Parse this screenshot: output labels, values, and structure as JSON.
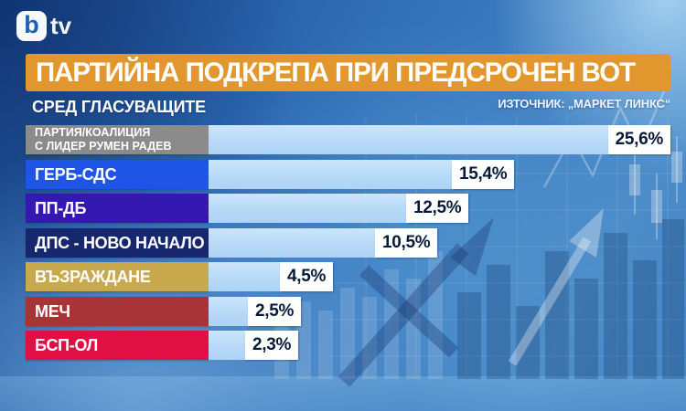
{
  "logo": {
    "b": "b",
    "tv": "tv"
  },
  "header": {
    "title": "ПАРТИЙНА ПОДКРЕПА ПРИ ПРЕДСРОЧЕН ВОТ",
    "subtitle": "СРЕД ГЛАСУВАЩИТЕ",
    "source": "ИЗТОЧНИК: „МАРКЕТ ЛИНКС“"
  },
  "colors": {
    "banner": "#E2962E",
    "bar_fill": "#BCDCF8",
    "value_box": "#FFFFFF",
    "value_text": "#071A38"
  },
  "rows": [
    {
      "label_line1": "ПАРТИЯ/КОАЛИЦИЯ",
      "label_line2": "С ЛИДЕР РУМЕН РАДЕВ",
      "value_label": "25,6%",
      "pct": 25.6,
      "color": "#8B8B8B"
    },
    {
      "label_line1": "ГЕРБ-СДС",
      "label_line2": "",
      "value_label": "15,4%",
      "pct": 15.4,
      "color": "#1F55E6"
    },
    {
      "label_line1": "ПП-ДБ",
      "label_line2": "",
      "value_label": "12,5%",
      "pct": 12.5,
      "color": "#3518B0"
    },
    {
      "label_line1": "ДПС - НОВО НАЧАЛО",
      "label_line2": "",
      "value_label": "10,5%",
      "pct": 10.5,
      "color": "#16276E"
    },
    {
      "label_line1": "ВЪЗРАЖДАНЕ",
      "label_line2": "",
      "value_label": "4,5%",
      "pct": 4.5,
      "color": "#C8A94E"
    },
    {
      "label_line1": "МЕЧ",
      "label_line2": "",
      "value_label": "2,5%",
      "pct": 2.5,
      "color": "#A93438"
    },
    {
      "label_line1": "БСП-ОЛ",
      "label_line2": "",
      "value_label": "2,3%",
      "pct": 2.3,
      "color": "#E00F44"
    }
  ],
  "chart_data": {
    "type": "bar",
    "orientation": "horizontal",
    "title": "ПАРТИЙНА ПОДКРЕПА ПРИ ПРЕДСРОЧЕН ВОТ",
    "subtitle": "СРЕД ГЛАСУВАЩИТЕ",
    "source": "ИЗТОЧНИК: „МАРКЕТ ЛИНКС“",
    "categories": [
      "ПАРТИЯ/КОАЛИЦИЯ С ЛИДЕР РУМЕН РАДЕВ",
      "ГЕРБ-СДС",
      "ПП-ДБ",
      "ДПС - НОВО НАЧАЛО",
      "ВЪЗРАЖДАНЕ",
      "МЕЧ",
      "БСП-ОЛ"
    ],
    "values": [
      25.6,
      15.4,
      12.5,
      10.5,
      4.5,
      2.5,
      2.3
    ],
    "value_labels": [
      "25,6%",
      "15,4%",
      "12,5%",
      "10,5%",
      "4,5%",
      "2,5%",
      "2,3%"
    ],
    "unit": "%",
    "xlim": [
      0,
      28
    ],
    "grid": false,
    "legend": "none",
    "bar_color": "#BCDCF8",
    "category_colors": [
      "#8B8B8B",
      "#1F55E6",
      "#3518B0",
      "#16276E",
      "#C8A94E",
      "#A93438",
      "#E00F44"
    ]
  }
}
